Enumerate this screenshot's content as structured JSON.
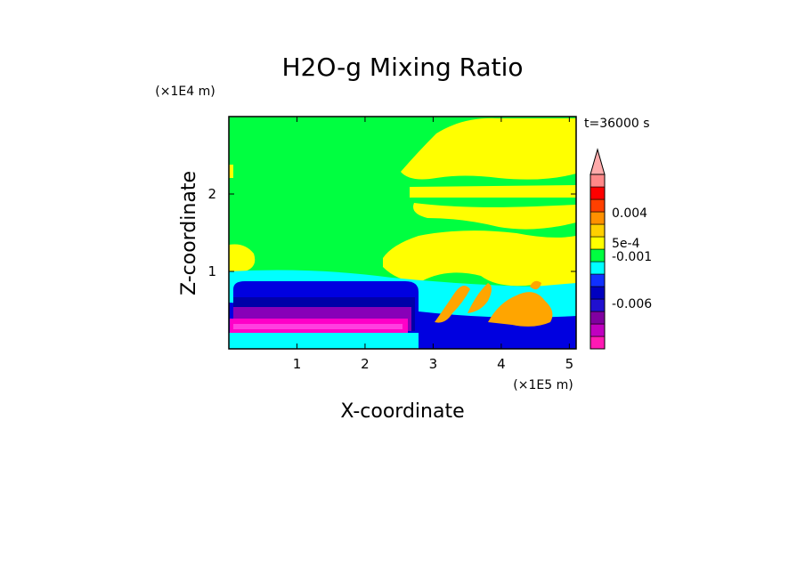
{
  "chart_data": {
    "type": "heatmap",
    "title": "H2O-g Mixing Ratio",
    "time_label": "t=36000 s",
    "xlabel": "X-coordinate",
    "ylabel": "Z-coordinate",
    "x_unit": "(×1E5 m)",
    "y_unit": "(×1E4 m)",
    "x_ticks": [
      1,
      2,
      3,
      4,
      5
    ],
    "y_ticks": [
      1,
      2
    ],
    "xlim": [
      0,
      5.1
    ],
    "ylim": [
      0,
      3.0
    ],
    "colorbar": {
      "labels": [
        "0.004",
        "5e-4",
        "-0.001",
        "-0.006"
      ],
      "colors": [
        "#ff1ab4",
        "#c000c0",
        "#8000a0",
        "#2010d0",
        "#0000c0",
        "#1030ff",
        "#00ffff",
        "#00ff40",
        "#ffff00",
        "#ffd000",
        "#ff9000",
        "#ff4000",
        "#ff0000",
        "#ff8888"
      ]
    },
    "colors": {
      "background_green": "#00ff40",
      "yellow": "#ffff00",
      "cyan": "#00ffff",
      "blue": "#0000e0",
      "navy": "#0000a8",
      "purple": "#8800b8",
      "magenta": "#ff00c8",
      "orange": "#ffa500"
    }
  }
}
